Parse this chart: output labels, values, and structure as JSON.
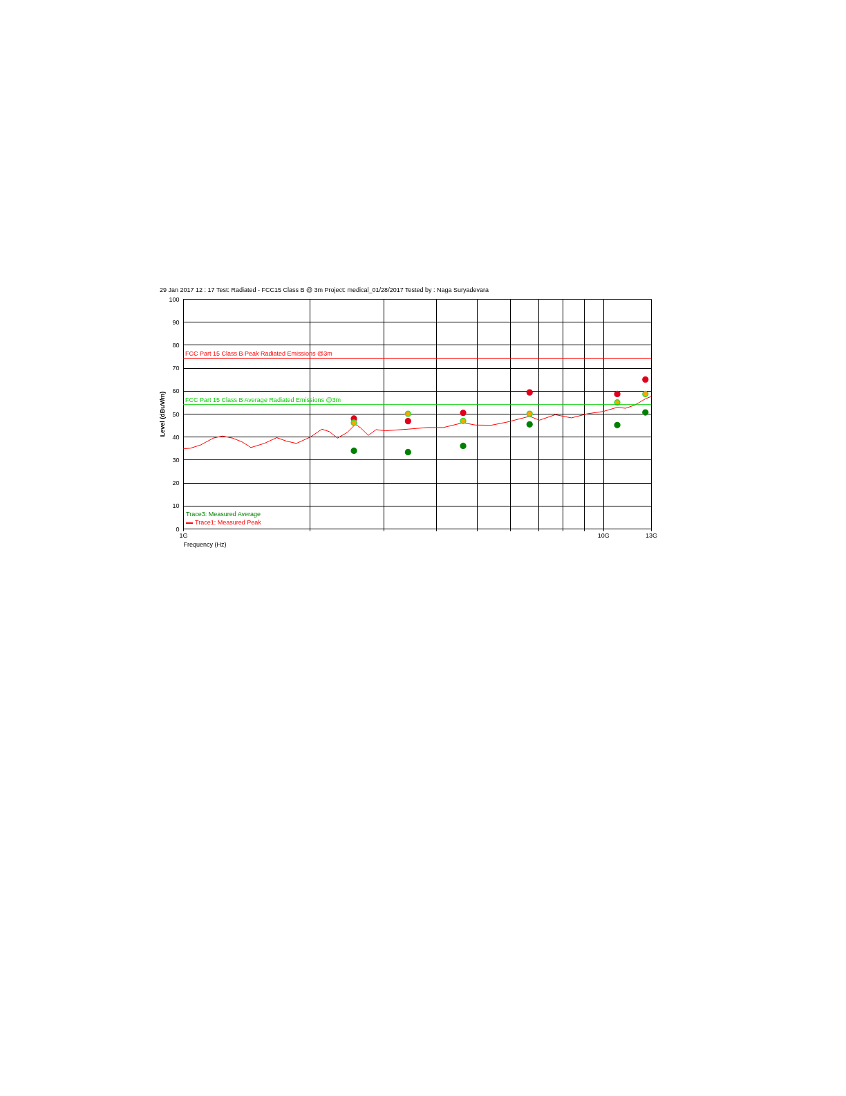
{
  "chart_data": {
    "type": "line",
    "title": "29 Jan 2017    12 : 17   Test: Radiated - FCC15 Class B @ 3m  Project: medical_01/28/2017  Tested by : Naga Suryadevara",
    "xlabel": "Frequency (Hz)",
    "ylabel": "Level (dBuV/m)",
    "xlim": [
      1,
      13
    ],
    "xticks": [
      {
        "value": 1,
        "label": "1G"
      },
      {
        "value": 2,
        "label": null
      },
      {
        "value": 3,
        "label": null
      },
      {
        "value": 4,
        "label": null
      },
      {
        "value": 5,
        "label": null
      },
      {
        "value": 6,
        "label": null
      },
      {
        "value": 7,
        "label": null
      },
      {
        "value": 8,
        "label": null
      },
      {
        "value": 9,
        "label": null
      },
      {
        "value": 10,
        "label": "10G"
      },
      {
        "value": 13,
        "label": "13G"
      }
    ],
    "ylim": [
      0,
      100
    ],
    "yticks": [
      0,
      10,
      20,
      30,
      40,
      50,
      60,
      70,
      80,
      90,
      100
    ],
    "log": "x",
    "grid": true,
    "series": [
      {
        "name": "Trace1: Measured Peak",
        "color": "#ff0000",
        "x": [
          1,
          1.04,
          1.1,
          1.18,
          1.24,
          1.31,
          1.38,
          1.45,
          1.56,
          1.67,
          1.76,
          1.86,
          2.01,
          2.14,
          2.23,
          2.33,
          2.46,
          2.57,
          2.64,
          2.76,
          2.88,
          3.03,
          3.43,
          3.81,
          4.16,
          4.64,
          4.96,
          5.41,
          5.91,
          6.68,
          7.05,
          7.69,
          8.4,
          9.17,
          10.0,
          10.8,
          11.3,
          11.9,
          12.6,
          13
        ],
        "values": [
          34.7,
          35,
          36.4,
          39.4,
          40.3,
          39.4,
          37.8,
          35.3,
          37.1,
          39.6,
          38.1,
          37.1,
          39.9,
          43.3,
          42.2,
          39.4,
          41.9,
          45.4,
          44,
          40.6,
          43.1,
          42.6,
          43.3,
          44,
          44,
          46.1,
          45.1,
          45,
          46.4,
          48.9,
          47.2,
          49.6,
          48.2,
          50,
          51,
          52.8,
          52.4,
          53.8,
          56.5,
          57.5
        ]
      },
      {
        "type": "scatter",
        "color": "#e0001b",
        "x": [
          2.55,
          3.43,
          4.64,
          6.68,
          10.8,
          12.6
        ],
        "values": [
          47.9,
          46.8,
          50.4,
          59.3,
          58.6,
          64.9
        ]
      },
      {
        "type": "scatter",
        "color": "#ffa500",
        "x": [
          2.55,
          3.43,
          4.64,
          6.68,
          10.8,
          12.6
        ],
        "values": [
          46.1,
          50,
          46.9,
          50,
          54.9,
          58.6
        ]
      },
      {
        "type": "scatter",
        "color": "#008000",
        "x": [
          2.55,
          3.43,
          4.64,
          6.68,
          10.8,
          12.6
        ],
        "values": [
          33.9,
          33.3,
          36,
          45.4,
          45.1,
          50.6
        ]
      }
    ],
    "legend": "bottom left",
    "annotations": [
      "Trace3: Measured Average"
    ],
    "ref_lines": [
      {
        "axis": "y",
        "value": 74,
        "label": "FCC Part 15 Class B Peak Radiated Emissions @3m",
        "color": "#ff0000"
      },
      {
        "axis": "y",
        "value": 54,
        "label": "FCC Part 15 Class B Average Radiated Emissions @3m",
        "color": "#00cc00"
      }
    ]
  }
}
